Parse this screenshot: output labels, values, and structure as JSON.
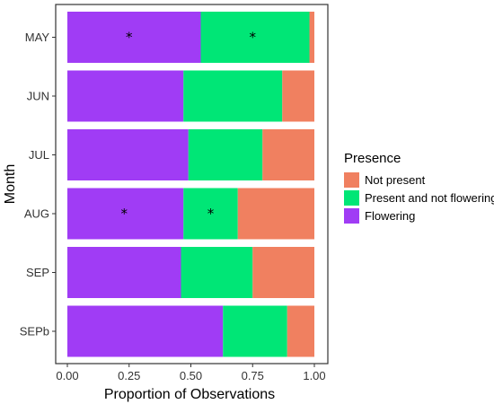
{
  "chart_data": {
    "type": "bar",
    "orientation": "horizontal",
    "stacked": true,
    "categories": [
      "MAY",
      "JUN",
      "JUL",
      "AUG",
      "SEP",
      "SEPb"
    ],
    "series": [
      {
        "name": "Flowering",
        "color": "#a03cf5",
        "values": [
          0.54,
          0.47,
          0.49,
          0.47,
          0.46,
          0.63
        ]
      },
      {
        "name": "Present and not flowering",
        "color": "#00e676",
        "values": [
          0.44,
          0.4,
          0.3,
          0.22,
          0.29,
          0.26
        ]
      },
      {
        "name": "Not present",
        "color": "#f08060",
        "values": [
          0.02,
          0.13,
          0.21,
          0.31,
          0.25,
          0.11
        ]
      }
    ],
    "annotations": [
      {
        "category": "MAY",
        "x": 0.25,
        "text": "*"
      },
      {
        "category": "MAY",
        "x": 0.75,
        "text": "*"
      },
      {
        "category": "AUG",
        "x": 0.23,
        "text": "*"
      },
      {
        "category": "AUG",
        "x": 0.58,
        "text": "*"
      }
    ],
    "xlabel": "Proportion of Observations",
    "ylabel": "Month",
    "xlim": [
      0,
      1
    ],
    "xticks": [
      "0.00",
      "0.25",
      "0.50",
      "0.75",
      "1.00"
    ],
    "xtick_values": [
      0,
      0.25,
      0.5,
      0.75,
      1.0
    ],
    "grid": false,
    "legend": {
      "title": "Presence",
      "placement": "right",
      "entries": [
        "Not present",
        "Present and not flowering",
        "Flowering"
      ]
    }
  }
}
